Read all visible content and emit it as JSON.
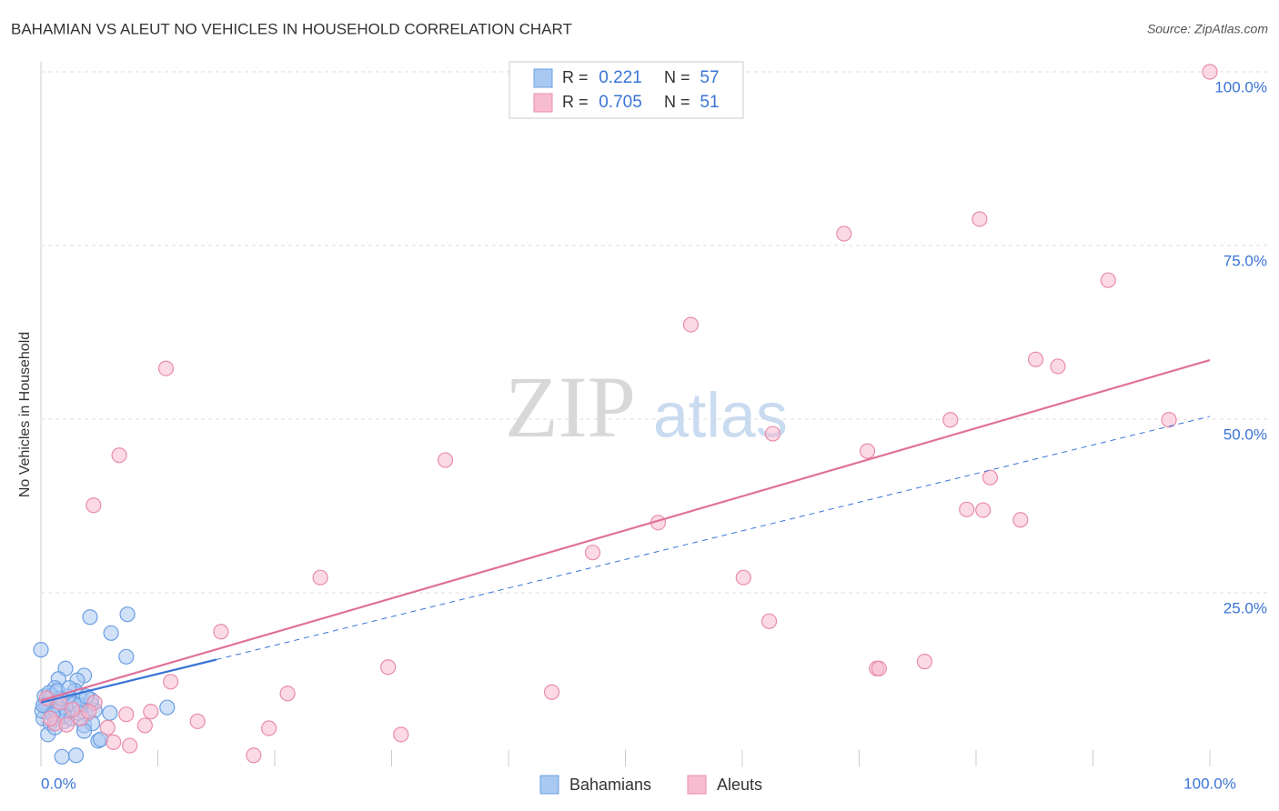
{
  "chart_data": {
    "type": "scatter",
    "title": "BAHAMIAN VS ALEUT NO VEHICLES IN HOUSEHOLD CORRELATION CHART",
    "source": "Source: ZipAtlas.com",
    "y_label": "No Vehicles in Household",
    "watermark": [
      "ZIP",
      "atlas"
    ],
    "xlim": [
      0,
      100
    ],
    "ylim": [
      0,
      100
    ],
    "xticks": [
      {
        "value": 0,
        "label": "0.0%"
      },
      {
        "value": 100,
        "label": "100.0%"
      }
    ],
    "xminor_ticks": [
      10,
      20,
      30,
      40,
      50,
      60,
      70,
      80,
      90
    ],
    "yticks": [
      {
        "value": 25,
        "label": "25.0%"
      },
      {
        "value": 50,
        "label": "50.0%"
      },
      {
        "value": 75,
        "label": "75.0%"
      },
      {
        "value": 100,
        "label": "100.0%"
      }
    ],
    "grid": true,
    "legend_labels": {
      "r": "R =",
      "n": "N ="
    },
    "series": [
      {
        "name": "Bahamians",
        "color": "#6b9fe3",
        "fill": "#a9c9f2",
        "trend_color": "#3a74d6",
        "r": 0.221,
        "n": 57,
        "trend": {
          "x": [
            0,
            100
          ],
          "y": [
            9.2,
            50.4
          ]
        },
        "trend_solid_to": 15,
        "x": [
          7.4,
          4.2,
          6.0,
          7.3,
          0,
          2.1,
          3.7,
          1.5,
          3.1,
          1.2,
          2.9,
          0.3,
          0.8,
          1.4,
          1.9,
          2.6,
          3.5,
          4.3,
          0.5,
          1.0,
          1.6,
          2.3,
          3.0,
          3.9,
          4.6,
          5.9,
          10.8,
          0.2,
          0.8,
          1.3,
          2.0,
          3.7,
          4.4,
          3.7,
          0.6,
          4.9,
          1.8,
          3.0,
          0.4,
          0.9,
          1.7,
          2.3,
          2.8,
          3.3,
          0.1,
          1.9,
          2.6,
          3.2,
          1.2,
          5.1,
          4.3,
          0.7,
          1.4,
          2.4,
          0.2,
          1.0,
          3.9
        ],
        "values": [
          21.9,
          21.5,
          19.2,
          15.8,
          16.8,
          14.1,
          13.1,
          12.6,
          12.4,
          11.3,
          10.9,
          10.1,
          9.6,
          9.3,
          8.9,
          9.4,
          9.6,
          9.0,
          8.5,
          8.0,
          8.2,
          7.9,
          8.4,
          7.5,
          8.1,
          7.7,
          8.5,
          6.9,
          6.2,
          6.8,
          6.5,
          5.9,
          6.2,
          5.1,
          4.6,
          3.7,
          1.4,
          1.6,
          9.0,
          10.2,
          9.8,
          10.1,
          9.0,
          8.8,
          8.0,
          7.2,
          6.9,
          7.7,
          5.6,
          3.9,
          9.6,
          10.6,
          10.9,
          11.3,
          8.8,
          7.5,
          10.1
        ]
      },
      {
        "name": "Aleuts",
        "color": "#e98cab",
        "fill": "#f7bcd0",
        "trend_color": "#e0709a",
        "r": 0.705,
        "n": 51,
        "trend": {
          "x": [
            0,
            100
          ],
          "y": [
            9.5,
            58.5
          ]
        },
        "trend_solid_to": 100,
        "x": [
          100,
          80.3,
          68.7,
          91.3,
          55.6,
          10.7,
          85.1,
          87.0,
          77.8,
          96.5,
          62.6,
          6.7,
          34.6,
          70.7,
          81.2,
          4.5,
          79.2,
          80.6,
          83.8,
          52.8,
          47.2,
          23.9,
          60.1,
          62.3,
          15.4,
          75.6,
          71.5,
          71.7,
          29.7,
          11.1,
          43.7,
          21.1,
          4.6,
          9.4,
          7.3,
          13.4,
          3.4,
          8.9,
          5.7,
          19.5,
          1.2,
          2.2,
          30.8,
          6.2,
          7.6,
          18.2,
          1.6,
          2.7,
          4.1,
          0.8,
          0.5
        ],
        "values": [
          100,
          78.8,
          76.7,
          70.0,
          63.6,
          57.3,
          58.6,
          57.6,
          49.9,
          49.9,
          47.9,
          44.8,
          44.1,
          45.4,
          41.6,
          37.6,
          37.0,
          36.9,
          35.5,
          35.1,
          30.8,
          27.2,
          27.2,
          20.9,
          19.4,
          15.1,
          14.1,
          14.1,
          14.3,
          12.2,
          10.7,
          10.5,
          9.2,
          7.9,
          7.5,
          6.5,
          6.9,
          5.9,
          5.6,
          5.5,
          6.2,
          6.0,
          4.6,
          3.5,
          3.0,
          1.6,
          9.2,
          8.2,
          7.9,
          6.9,
          9.8
        ]
      }
    ]
  }
}
